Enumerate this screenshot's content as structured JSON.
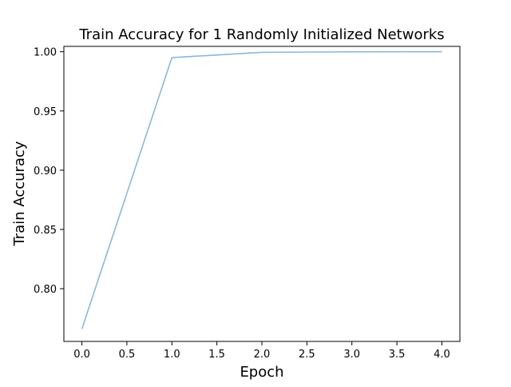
{
  "chart_data": {
    "type": "line",
    "title": "Train Accuracy for 1 Randomly Initialized Networks",
    "xlabel": "Epoch",
    "ylabel": "Train Accuracy",
    "xlim": [
      -0.2,
      4.2
    ],
    "ylim": [
      0.7555,
      1.0045
    ],
    "xticks": [
      0.0,
      0.5,
      1.0,
      1.5,
      2.0,
      2.5,
      3.0,
      3.5,
      4.0
    ],
    "xtick_labels": [
      "0.0",
      "0.5",
      "1.0",
      "1.5",
      "2.0",
      "2.5",
      "3.0",
      "3.5",
      "4.0"
    ],
    "yticks": [
      0.8,
      0.85,
      0.9,
      0.95,
      1.0
    ],
    "ytick_labels": [
      "0.80",
      "0.85",
      "0.90",
      "0.95",
      "1.00"
    ],
    "grid": false,
    "series": [
      {
        "x": [
          0,
          1,
          2,
          3,
          4
        ],
        "y": [
          0.766,
          0.995,
          0.9995,
          0.9999,
          1.0
        ],
        "color": "#8ab8d9"
      }
    ]
  }
}
